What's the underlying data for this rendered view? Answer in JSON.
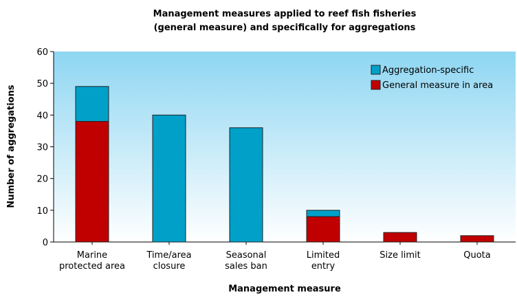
{
  "chart_data": {
    "type": "stacked_bar",
    "title": "Management measures applied to reef fish fisheries",
    "subtitle": "(general measure) and specifically for aggregations",
    "x_label": "Management measure",
    "y_label": "Number of aggregations",
    "categories": [
      "Marine\nprotected area",
      "Time/area\nclosure",
      "Seasonal\nsales ban",
      "Limited\nentry",
      "Size limit",
      "Quota"
    ],
    "series": [
      {
        "name": "Aggregation-specific",
        "color": "#00a0c8",
        "values": [
          11,
          40,
          36,
          2,
          0,
          0
        ]
      },
      {
        "name": "General measure in area",
        "color": "#c00000",
        "values": [
          38,
          0,
          0,
          8,
          3,
          2
        ]
      }
    ],
    "ylim": [
      0,
      60
    ],
    "yticks": [
      0,
      10,
      20,
      30,
      40,
      50,
      60
    ],
    "legend": "upper right"
  }
}
